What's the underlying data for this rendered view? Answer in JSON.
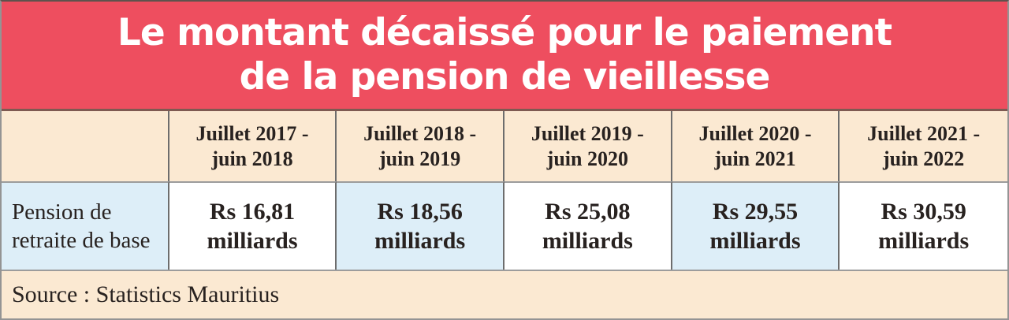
{
  "title": {
    "line1": "Le montant décaissé pour le paiement",
    "line2": "de la pension de vieillesse"
  },
  "table": {
    "row_label": "Pension de retraite de base",
    "columns": [
      {
        "period_l1": "Juillet 2017 -",
        "period_l2": "juin 2018",
        "amount": "Rs 16,81",
        "unit": "milliards"
      },
      {
        "period_l1": "Juillet 2018 -",
        "period_l2": "juin 2019",
        "amount": "Rs 18,56",
        "unit": "milliards"
      },
      {
        "period_l1": "Juillet 2019 -",
        "period_l2": "juin 2020",
        "amount": "Rs 25,08",
        "unit": "milliards"
      },
      {
        "period_l1": "Juillet 2020 -",
        "period_l2": "juin 2021",
        "amount": "Rs 29,55",
        "unit": "milliards"
      },
      {
        "period_l1": "Juillet 2021 -",
        "period_l2": "juin 2022",
        "amount": "Rs 30,59",
        "unit": "milliards"
      }
    ]
  },
  "source": "Source : Statistics Mauritius",
  "colors": {
    "banner_red": "#EE4E5F",
    "banner_text": "#FFFFFF",
    "cream": "#FBE9D2",
    "light_blue": "#DDEEF8",
    "text_dark": "#282220",
    "grid_line_vertical": "#6D6D6D",
    "grid_line_horizontal": "#9C9C9C"
  },
  "chart_data": {
    "type": "table",
    "title": "Le montant décaissé pour le paiement de la pension de vieillesse",
    "categories": [
      "Juillet 2017 - juin 2018",
      "Juillet 2018 - juin 2019",
      "Juillet 2019 - juin 2020",
      "Juillet 2020 - juin 2021",
      "Juillet 2021 - juin 2022"
    ],
    "series": [
      {
        "name": "Pension de retraite de base",
        "values": [
          16.81,
          18.56,
          25.08,
          29.55,
          30.59
        ]
      }
    ],
    "unit": "Rs milliards",
    "source": "Source : Statistics Mauritius"
  }
}
